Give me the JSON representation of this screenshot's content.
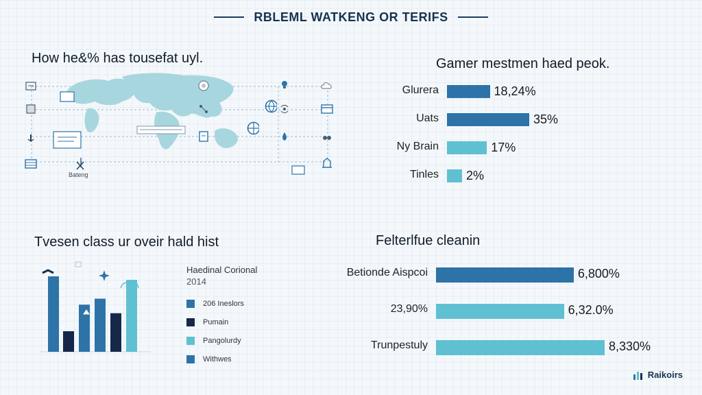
{
  "header": {
    "title": "RBLEML WATKENG OR TERIFS"
  },
  "brand": {
    "name": "Raikoirs"
  },
  "map_panel": {
    "title": "How he&% has tousefat uyl.",
    "map_label": "Bateng"
  },
  "top_right_chart": {
    "title": "Gamer mestmen haed peok.",
    "chart_data": {
      "type": "bar",
      "orientation": "horizontal",
      "categories": [
        "Glurera",
        "Uats",
        "Ny Brain",
        "Tinles"
      ],
      "value_labels": [
        "18,24%",
        "35%",
        "17%",
        "2%"
      ],
      "values": [
        18.24,
        35,
        17,
        2
      ],
      "colors": [
        "#2d73a8",
        "#2d73a8",
        "#5fc0d1",
        "#5fc0d1"
      ]
    }
  },
  "bottom_left_chart": {
    "title": "Tvesen class ur oveir hald hist",
    "legend_title": "Haedinal Corional",
    "legend_subtitle": "2014",
    "chart_data": {
      "type": "bar",
      "values": [
        88,
        24,
        55,
        62,
        45,
        84
      ],
      "colors": [
        "#2d73a8",
        "#16284a",
        "#2d73a8",
        "#2d73a8",
        "#16284a",
        "#5fc0d1"
      ],
      "legend": [
        {
          "name": "206 Ineslors",
          "color": "#2d73a8"
        },
        {
          "name": "Pumain",
          "color": "#16284a"
        },
        {
          "name": "Pangolurdy",
          "color": "#5fc0d1"
        },
        {
          "name": "Withwes",
          "color": "#2d73a8"
        }
      ]
    }
  },
  "bottom_right_chart": {
    "title": "Felterlfue cleanin",
    "chart_data": {
      "type": "bar",
      "orientation": "horizontal",
      "categories": [
        "Betionde Aispcoi",
        "23,90%",
        "Trunpestuly"
      ],
      "value_labels": [
        "6,800%",
        "6,32.0%",
        "8,330%"
      ],
      "values": [
        6.8,
        6.32,
        8.33
      ],
      "colors": [
        "#2d73a8",
        "#5fc0d1",
        "#5fc0d1"
      ]
    }
  }
}
